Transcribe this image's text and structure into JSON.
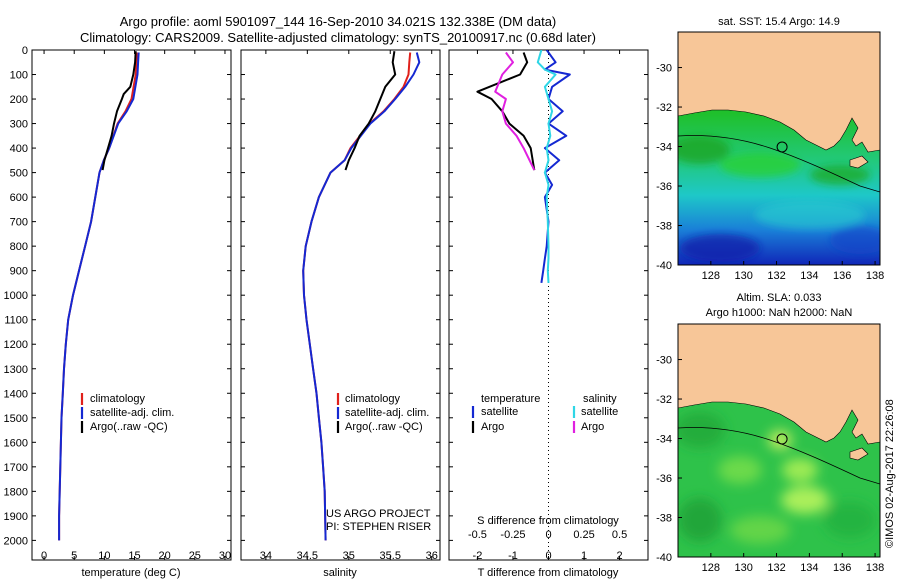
{
  "header": {
    "line1": "Argo profile: aoml 5901097_144 16-Sep-2010 34.021S 132.338E (DM data)",
    "line2": "Climatology: CARS2009. Satellite-adjusted climatology: synTS_20100917.nc (0.68d later)"
  },
  "colors": {
    "climatology": "#e0201b",
    "satellite": "#1428d2",
    "argo": "#000000",
    "sat_salinity": "#2fd6e6",
    "argo_salinity": "#e020e0",
    "land": "#f7c698",
    "zero_line": "#000000"
  },
  "chart_data": [
    {
      "type": "line",
      "id": "temperature",
      "xlabel": "temperature (deg C)",
      "ylabel": "",
      "xlim": [
        -2,
        31
      ],
      "ylim": [
        2080,
        0
      ],
      "xticks": [
        0,
        5,
        10,
        15,
        20,
        25,
        30
      ],
      "yticks": [
        0,
        100,
        200,
        300,
        400,
        500,
        600,
        700,
        800,
        900,
        1000,
        1100,
        1200,
        1300,
        1400,
        1500,
        1600,
        1700,
        1800,
        1900,
        2000
      ],
      "legend": [
        "climatology",
        "satellite-adj. clim.",
        "Argo(..raw -QC)"
      ],
      "series": [
        {
          "name": "climatology",
          "color": "#e0201b",
          "x": [
            15.4,
            15.3,
            15.2,
            14.5,
            13.5,
            12.2,
            10.8,
            9.9,
            9.2,
            8.5,
            7.8,
            6.8,
            5.8,
            4.8,
            4.0,
            3.6,
            3.3,
            3.1,
            2.9,
            2.8,
            2.7,
            2.6,
            2.5,
            2.5
          ],
          "y": [
            10,
            50,
            100,
            200,
            250,
            300,
            400,
            450,
            500,
            600,
            700,
            800,
            900,
            1000,
            1100,
            1200,
            1300,
            1400,
            1500,
            1600,
            1700,
            1800,
            1900,
            2000
          ]
        },
        {
          "name": "satellite-adj. clim.",
          "color": "#1428d2",
          "x": [
            15.7,
            15.6,
            15.5,
            14.8,
            13.7,
            12.3,
            10.8,
            9.9,
            9.2,
            8.5,
            7.8,
            6.8,
            5.8,
            4.8,
            4.0,
            3.6,
            3.3,
            3.1,
            2.9,
            2.8,
            2.7,
            2.6,
            2.5,
            2.5
          ],
          "y": [
            10,
            50,
            100,
            200,
            250,
            300,
            400,
            450,
            500,
            600,
            700,
            800,
            900,
            1000,
            1100,
            1200,
            1300,
            1400,
            1500,
            1600,
            1700,
            1800,
            1900,
            2000
          ]
        },
        {
          "name": "Argo(..raw -QC)",
          "color": "#000000",
          "x": [
            15.2,
            15.1,
            14.8,
            14.3,
            13.2,
            12.9,
            12.1,
            11.6,
            11.2,
            10.6,
            10.0,
            9.7
          ],
          "y": [
            5,
            50,
            100,
            150,
            180,
            200,
            250,
            300,
            350,
            400,
            450,
            490
          ]
        }
      ]
    },
    {
      "type": "line",
      "id": "salinity",
      "xlabel": "salinity",
      "xlim": [
        33.7,
        36.1
      ],
      "ylim": [
        2080,
        0
      ],
      "xticks": [
        34,
        34.5,
        35,
        35.5,
        36
      ],
      "legend": [
        "climatology",
        "satellite-adj. clim.",
        "Argo(..raw -QC)"
      ],
      "annotation": [
        "US ARGO PROJECT",
        "PI: STEPHEN RISER"
      ],
      "series": [
        {
          "name": "climatology",
          "color": "#e0201b",
          "x": [
            35.74,
            35.73,
            35.72,
            35.66,
            35.55,
            35.42,
            35.25,
            35.02,
            34.95,
            34.78,
            34.64,
            34.55,
            34.48,
            34.45,
            34.46,
            34.49,
            34.53,
            34.57,
            34.61,
            34.64,
            34.67,
            34.69,
            34.71,
            34.72
          ],
          "y": [
            10,
            50,
            100,
            150,
            200,
            250,
            300,
            400,
            450,
            500,
            600,
            700,
            800,
            900,
            1000,
            1100,
            1200,
            1300,
            1400,
            1500,
            1600,
            1700,
            1800,
            2000
          ]
        },
        {
          "name": "satellite-adj. clim.",
          "color": "#1428d2",
          "x": [
            35.82,
            35.85,
            35.78,
            35.68,
            35.56,
            35.43,
            35.26,
            35.03,
            34.95,
            34.78,
            34.64,
            34.55,
            34.48,
            34.45,
            34.46,
            34.49,
            34.53,
            34.57,
            34.61,
            34.64,
            34.67,
            34.69,
            34.71,
            34.72
          ],
          "y": [
            10,
            50,
            100,
            150,
            200,
            250,
            300,
            400,
            450,
            500,
            600,
            700,
            800,
            900,
            1000,
            1100,
            1200,
            1300,
            1400,
            1500,
            1600,
            1700,
            1800,
            2000
          ]
        },
        {
          "name": "Argo(..raw -QC)",
          "color": "#000000",
          "x": [
            35.55,
            35.53,
            35.56,
            35.44,
            35.38,
            35.32,
            35.24,
            35.13,
            35.07,
            35.0,
            34.96
          ],
          "y": [
            5,
            50,
            100,
            150,
            200,
            250,
            300,
            350,
            400,
            450,
            490
          ]
        }
      ]
    },
    {
      "type": "line",
      "id": "differences",
      "xlabel": "T difference from climatology",
      "x2label": "S difference from climatology",
      "xlim": [
        -2.8,
        2.8
      ],
      "ylim": [
        2080,
        0
      ],
      "xticks": [
        -2,
        -1,
        0,
        1,
        2
      ],
      "x2ticks": [
        "-0.5",
        "-0.25",
        "0",
        "0.25",
        "0.5"
      ],
      "legend_headers": [
        "temperature",
        "salinity"
      ],
      "legend": [
        "satellite",
        "Argo",
        "satellite",
        "Argo"
      ],
      "series": [
        {
          "name": "satellite",
          "quantity": "temperature",
          "color": "#1428d2",
          "x": [
            -0.05,
            0.2,
            -0.1,
            0.6,
            0.1,
            0.0,
            0.4,
            0.0,
            0.5,
            -0.1,
            0.3,
            -0.1,
            0.1,
            -0.1,
            0.0,
            -0.05,
            -0.1,
            -0.15,
            -0.2
          ],
          "y": [
            0,
            50,
            80,
            100,
            150,
            200,
            250,
            300,
            350,
            400,
            450,
            500,
            550,
            600,
            700,
            800,
            850,
            900,
            950
          ]
        },
        {
          "name": "satellite",
          "quantity": "salinity",
          "color": "#2fd6e6",
          "x": [
            -0.2,
            -0.3,
            -0.1,
            0.2,
            -0.1,
            0.0,
            0.1,
            0.0,
            0.05,
            -0.05,
            0.0,
            -0.1,
            0.0,
            -0.05,
            -0.02,
            0.0,
            0.0,
            -0.02,
            0.0
          ],
          "y": [
            0,
            50,
            80,
            100,
            150,
            200,
            250,
            300,
            350,
            400,
            450,
            500,
            550,
            600,
            700,
            800,
            850,
            900,
            950
          ]
        },
        {
          "name": "Argo",
          "quantity": "temperature",
          "color": "#000000",
          "x": [
            -0.7,
            -0.6,
            -0.8,
            -2.0,
            -1.6,
            -1.3,
            -1.1,
            -0.7,
            -0.5,
            -0.4
          ],
          "y": [
            10,
            50,
            100,
            170,
            200,
            250,
            300,
            350,
            400,
            490
          ]
        },
        {
          "name": "Argo",
          "quantity": "salinity",
          "color": "#e020e0",
          "x": [
            -1.2,
            -1.0,
            -1.3,
            -1.5,
            -1.2,
            -1.3,
            -1.2,
            -0.9,
            -0.7,
            -0.4
          ],
          "y": [
            10,
            50,
            100,
            170,
            200,
            250,
            300,
            350,
            400,
            490
          ]
        }
      ]
    },
    {
      "type": "heatmap",
      "id": "sst-map",
      "title": "sat. SST: 15.4  Argo: 14.9",
      "xticks": [
        128,
        130,
        132,
        134,
        136,
        138
      ],
      "yticks": [
        -30,
        -32,
        -34,
        -36,
        -38,
        -40
      ],
      "xlim": [
        126,
        138.3
      ],
      "ylim": [
        -40,
        -28.2
      ],
      "profile_location": {
        "lon": 132.338,
        "lat": -34.021
      }
    },
    {
      "type": "heatmap",
      "id": "sla-map",
      "title": [
        "Altim. SLA: 0.033",
        "Argo h1000: NaN h2000: NaN"
      ],
      "xticks": [
        128,
        130,
        132,
        134,
        136,
        138
      ],
      "yticks": [
        -30,
        -32,
        -34,
        -36,
        -38,
        -40
      ],
      "xlim": [
        126,
        138.3
      ],
      "ylim": [
        -40,
        -28.2
      ],
      "profile_location": {
        "lon": 132.338,
        "lat": -34.021
      }
    }
  ],
  "watermark": "©IMOS 02-Aug-2017 22:26:08"
}
